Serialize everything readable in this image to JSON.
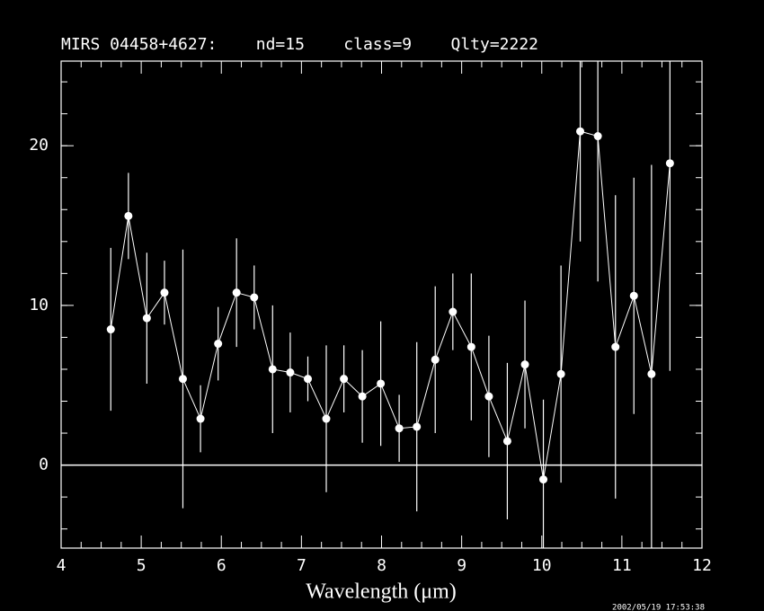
{
  "chart_data": {
    "type": "line",
    "title": "MIRS 04458+4627:    nd=15    class=9    Qlty=2222",
    "x_label": "Wavelength (μm)",
    "timestamp": "2002/05/19 17:53:38",
    "color": "#ffffff",
    "xlim": [
      4,
      12
    ],
    "ylim": [
      -5.2,
      25.3
    ],
    "xticks": [
      4,
      5,
      6,
      7,
      8,
      9,
      10,
      11,
      12
    ],
    "yticks": [
      0,
      10,
      20
    ],
    "xminor_divisions": 4,
    "yminor_divisions": 5,
    "hline": 0,
    "series": [
      {
        "x": [
          4.62,
          4.84,
          5.07,
          5.29,
          5.52,
          5.74,
          5.96,
          6.19,
          6.41,
          6.64,
          6.86,
          7.08,
          7.31,
          7.53,
          7.76,
          7.99,
          8.22,
          8.44,
          8.67,
          8.89,
          9.12,
          9.34,
          9.57,
          9.79,
          10.02,
          10.24,
          10.48,
          10.7,
          10.92,
          11.15,
          11.37,
          11.6
        ],
        "values": [
          8.5,
          15.6,
          9.2,
          10.8,
          5.4,
          2.9,
          7.6,
          10.8,
          10.5,
          6.0,
          5.8,
          5.4,
          2.9,
          5.4,
          4.3,
          5.1,
          2.3,
          2.4,
          6.6,
          9.6,
          7.4,
          4.3,
          1.5,
          6.3,
          -0.9,
          5.7,
          20.9,
          20.6,
          7.4,
          10.6,
          5.7,
          18.9
        ],
        "errors": [
          5.1,
          2.7,
          4.1,
          2.0,
          8.1,
          2.1,
          2.3,
          3.4,
          2.0,
          4.0,
          2.5,
          1.4,
          4.6,
          2.1,
          2.9,
          3.9,
          2.1,
          5.3,
          4.6,
          2.4,
          4.6,
          3.8,
          4.9,
          4.0,
          5.0,
          6.8,
          6.9,
          9.1,
          9.5,
          7.4,
          13.1,
          13.0
        ]
      }
    ]
  }
}
